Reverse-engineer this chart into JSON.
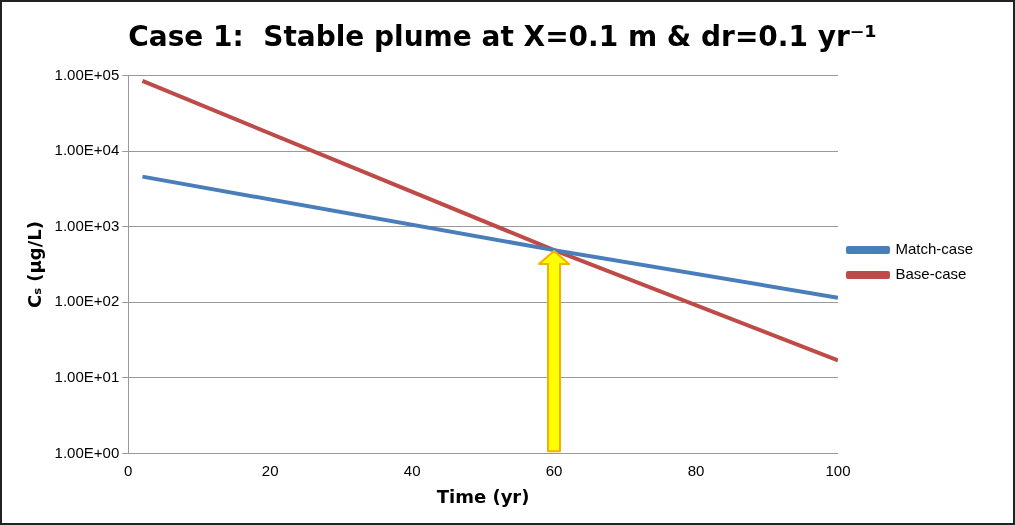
{
  "chart_data": {
    "type": "line",
    "title": "Case 1:  Stable plume at X=0.1 m & dr=0.1 yr⁻¹",
    "xlabel": "Time (yr)",
    "ylabel": "Cₛ (µg/L)",
    "series": [
      {
        "name": "Match-case",
        "color": "#4a7ebb",
        "x": [
          2,
          60,
          100
        ],
        "values": [
          4600,
          490,
          115
        ]
      },
      {
        "name": "Base-case",
        "color": "#be4b48",
        "x": [
          2,
          60,
          100
        ],
        "values": [
          85000,
          490,
          17
        ]
      }
    ],
    "xlim": [
      0,
      100
    ],
    "xticks": [
      0,
      20,
      40,
      60,
      80,
      100
    ],
    "ylim": [
      1,
      100000
    ],
    "yticks": [
      {
        "value": 1,
        "label": "1.00E+00"
      },
      {
        "value": 10,
        "label": "1.00E+01"
      },
      {
        "value": 100,
        "label": "1.00E+02"
      },
      {
        "value": 1000,
        "label": "1.00E+03"
      },
      {
        "value": 10000,
        "label": "1.00E+04"
      },
      {
        "value": 100000,
        "label": "1.00E+05"
      }
    ],
    "log": "y",
    "grid": "y",
    "legend": "right",
    "marker": "none",
    "line_style": "solid"
  }
}
